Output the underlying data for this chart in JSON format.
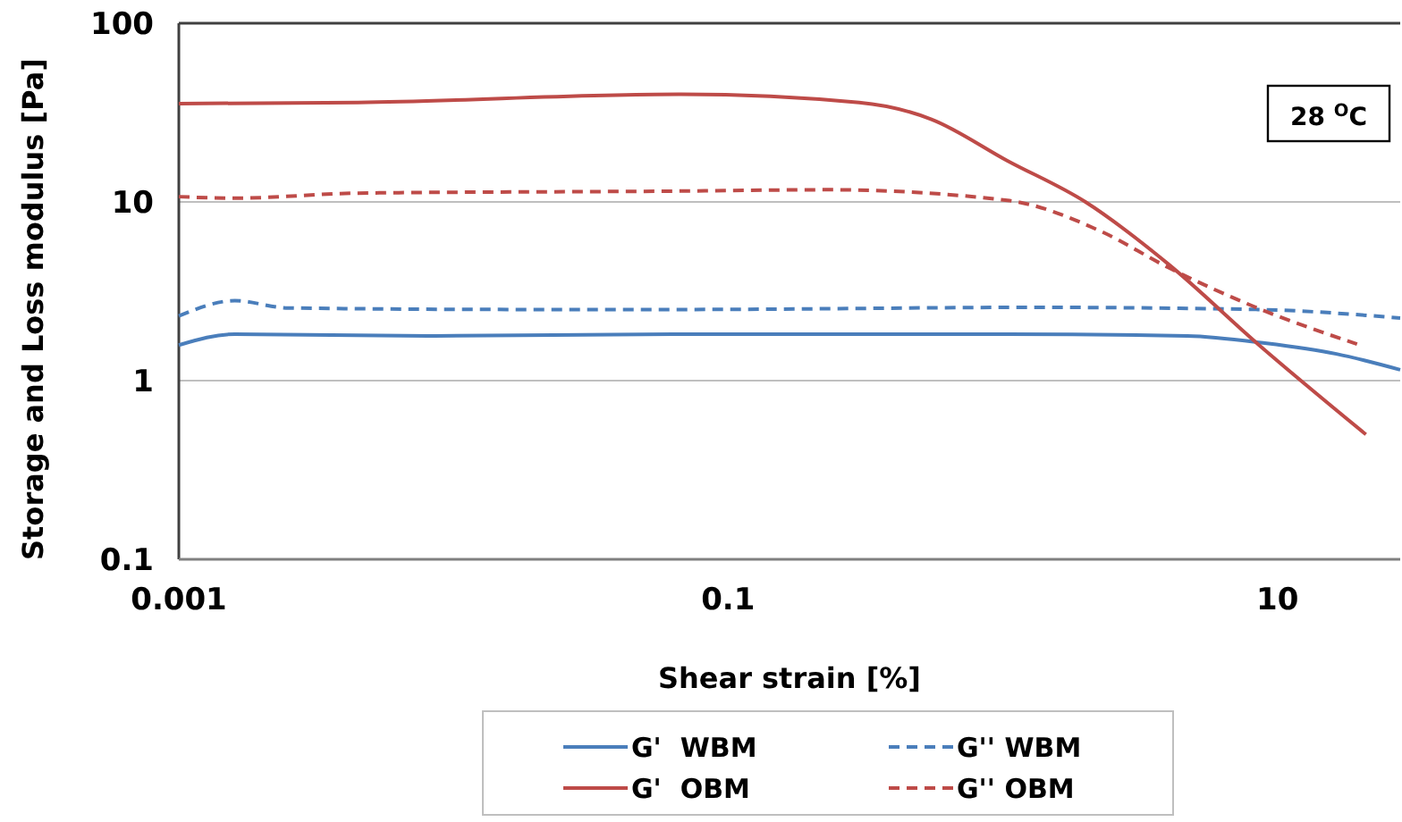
{
  "chart_data": {
    "type": "line",
    "xlabel": "Shear strain [%]",
    "ylabel": "Storage and Loss modulus [Pa]",
    "log": "xy",
    "xlim": [
      0.001,
      28
    ],
    "xticks": [
      0.001,
      0.1,
      10
    ],
    "ylim": [
      0.1,
      100
    ],
    "yticks": [
      0.1,
      1,
      10,
      100
    ],
    "grid": "y",
    "legend": "bottom",
    "annotations": [
      "28 $^{O}$C"
    ],
    "series": [
      {
        "name": "G'  WBM",
        "color": "#4a7ebb",
        "line_style": "solid",
        "x": [
          0.001,
          0.0016,
          0.0081,
          0.066,
          1.04,
          4.7,
          9,
          16.4,
          28
        ],
        "values": [
          1.58,
          1.82,
          1.78,
          1.82,
          1.82,
          1.78,
          1.62,
          1.41,
          1.15
        ]
      },
      {
        "name": "G'' WBM",
        "color": "#4a7ebb",
        "line_style": "dashed",
        "x": [
          0.001,
          0.0016,
          0.0025,
          0.02,
          0.066,
          1.34,
          8.5,
          28
        ],
        "values": [
          2.3,
          2.8,
          2.55,
          2.5,
          2.5,
          2.57,
          2.5,
          2.24
        ]
      },
      {
        "name": "G'  OBM",
        "color": "#be4b48",
        "line_style": "solid",
        "x": [
          0.001,
          0.0045,
          0.066,
          0.3,
          0.55,
          1.04,
          2.0,
          4.0,
          8.5,
          21
        ],
        "values": [
          35.5,
          36,
          40,
          36,
          29,
          17,
          10,
          4.5,
          1.6,
          0.5
        ]
      },
      {
        "name": "G'' OBM",
        "color": "#be4b48",
        "line_style": "dashed",
        "x": [
          0.001,
          0.0016,
          0.0045,
          0.066,
          0.23,
          1.04,
          2.3,
          4.0,
          8.2,
          19.5
        ],
        "values": [
          10.7,
          10.5,
          11.2,
          11.5,
          11.7,
          10.2,
          6.8,
          4.3,
          2.6,
          1.6
        ]
      }
    ]
  }
}
